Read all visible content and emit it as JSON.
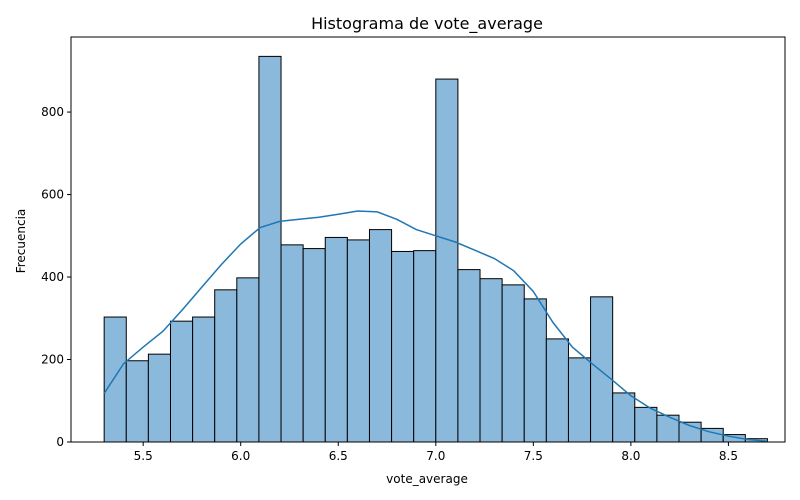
{
  "chart_data": {
    "type": "bar",
    "subtype": "histogram",
    "title": "Histograma de vote_average",
    "xlabel": "vote_average",
    "ylabel": "Frecuencia",
    "xlim": [
      5.13,
      8.79
    ],
    "ylim": [
      0,
      982
    ],
    "x_ticks": [
      5.5,
      6.0,
      6.5,
      7.0,
      7.5,
      8.0,
      8.5
    ],
    "x_tick_labels": [
      "5.5",
      "6.0",
      "6.5",
      "7.0",
      "7.5",
      "8.0",
      "8.5"
    ],
    "y_ticks": [
      0,
      200,
      400,
      600,
      800
    ],
    "y_tick_labels": [
      "0",
      "200",
      "400",
      "600",
      "800"
    ],
    "bins": {
      "start": 5.3,
      "end": 8.7,
      "counts": [
        303,
        197,
        213,
        293,
        303,
        369,
        398,
        935,
        478,
        469,
        496,
        490,
        515,
        462,
        464,
        880,
        418,
        396,
        381,
        347,
        250,
        204,
        352,
        119,
        84,
        65,
        48,
        33,
        18,
        8
      ]
    },
    "kde": {
      "x": [
        5.3,
        5.4,
        5.5,
        5.6,
        5.7,
        5.8,
        5.9,
        6.0,
        6.1,
        6.2,
        6.3,
        6.4,
        6.5,
        6.6,
        6.7,
        6.8,
        6.9,
        7.0,
        7.1,
        7.2,
        7.3,
        7.4,
        7.5,
        7.6,
        7.7,
        7.8,
        7.9,
        8.0,
        8.1,
        8.2,
        8.3,
        8.4,
        8.5,
        8.6,
        8.7
      ],
      "y": [
        118,
        190,
        230,
        268,
        320,
        375,
        430,
        480,
        520,
        535,
        540,
        545,
        552,
        560,
        558,
        540,
        515,
        500,
        485,
        465,
        445,
        415,
        365,
        290,
        230,
        190,
        152,
        112,
        82,
        60,
        40,
        25,
        14,
        6,
        2
      ]
    },
    "bar_color": "#8bb9dc",
    "bar_edge_color": "#000000",
    "kde_color": "#1f77b4",
    "grid": false,
    "legend": "none"
  }
}
